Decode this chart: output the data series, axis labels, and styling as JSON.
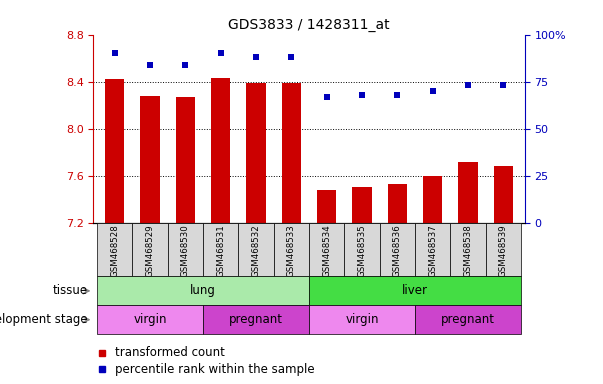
{
  "title": "GDS3833 / 1428311_at",
  "samples": [
    "GSM468528",
    "GSM468529",
    "GSM468530",
    "GSM468531",
    "GSM468532",
    "GSM468533",
    "GSM468534",
    "GSM468535",
    "GSM468536",
    "GSM468537",
    "GSM468538",
    "GSM468539"
  ],
  "transformed_count": [
    8.42,
    8.28,
    8.27,
    8.43,
    8.39,
    8.39,
    7.48,
    7.5,
    7.53,
    7.6,
    7.72,
    7.68
  ],
  "percentile_rank": [
    90,
    84,
    84,
    90,
    88,
    88,
    67,
    68,
    68,
    70,
    73,
    73
  ],
  "ylim_left": [
    7.2,
    8.8
  ],
  "ylim_right": [
    0,
    100
  ],
  "yticks_left": [
    7.2,
    7.6,
    8.0,
    8.4,
    8.8
  ],
  "yticks_right": [
    0,
    25,
    50,
    75,
    100
  ],
  "bar_color": "#cc0000",
  "dot_color": "#0000bb",
  "tissue_groups": [
    {
      "label": "lung",
      "start": 0,
      "end": 5,
      "color": "#aaeaaa"
    },
    {
      "label": "liver",
      "start": 6,
      "end": 11,
      "color": "#44dd44"
    }
  ],
  "dev_stage_groups": [
    {
      "label": "virgin",
      "start": 0,
      "end": 2,
      "color": "#ee88ee"
    },
    {
      "label": "pregnant",
      "start": 3,
      "end": 5,
      "color": "#cc44cc"
    },
    {
      "label": "virgin",
      "start": 6,
      "end": 8,
      "color": "#ee88ee"
    },
    {
      "label": "pregnant",
      "start": 9,
      "end": 11,
      "color": "#cc44cc"
    }
  ],
  "legend_bar_label": "transformed count",
  "legend_dot_label": "percentile rank within the sample",
  "tissue_row_label": "tissue",
  "dev_stage_row_label": "development stage",
  "bar_color_hex": "#cc0000",
  "dot_color_hex": "#0000bb",
  "left_axis_color": "#cc0000",
  "right_axis_color": "#0000bb",
  "tick_label_bg": "#d8d8d8"
}
